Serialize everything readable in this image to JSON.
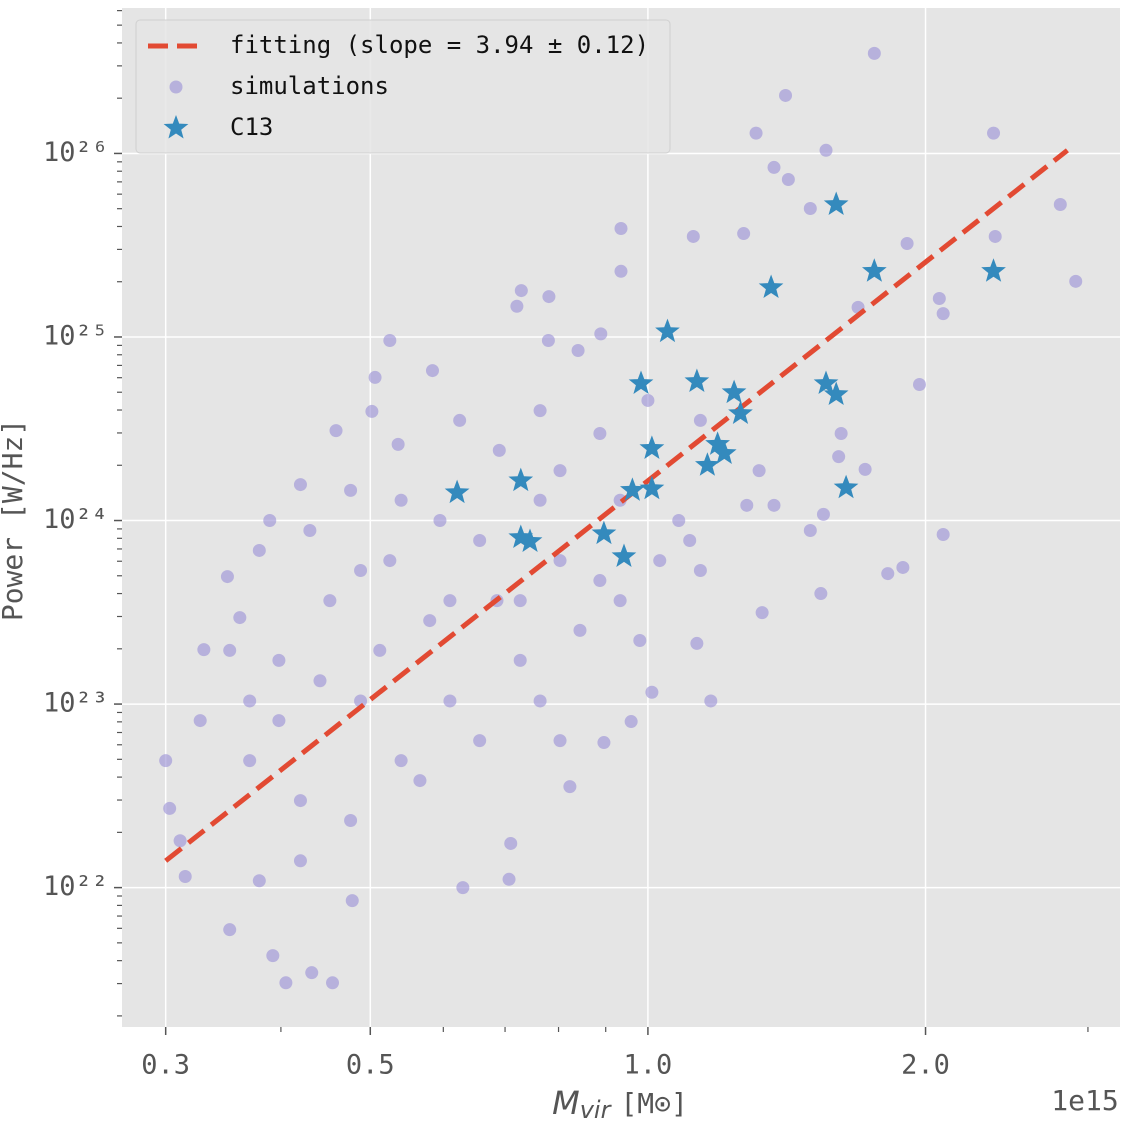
{
  "chart_data": {
    "type": "scatter",
    "xlabel": "M",
    "xlabel_sub": "vir",
    "xlabel_unit": "[M⊙]",
    "ylabel": "Power [W/Hz]",
    "x_offset_text": "1e15",
    "xscale": "log",
    "yscale": "log",
    "grid": true,
    "legend": "upper left",
    "xlim": [
      0.269,
      3.25
    ],
    "ylim": [
      1.74e+21,
      6.2e+26
    ],
    "xticks": [
      0.3,
      0.5,
      {
        "value": 1,
        "label": "1.0"
      },
      {
        "value": 2,
        "label": "2.0"
      }
    ],
    "xminorticks": [
      0.4,
      0.6,
      0.7,
      0.8,
      0.9,
      3
    ],
    "yticks": [
      {
        "value": 1e+22,
        "label": "10²²"
      },
      {
        "value": 1e+23,
        "label": "10²³"
      },
      {
        "value": 1e+24,
        "label": "10²⁴"
      },
      {
        "value": 1e+25,
        "label": "10²⁵"
      },
      {
        "value": 1e+26,
        "label": "10²⁶"
      }
    ],
    "yminorticks": [
      2e+21,
      3e+21,
      4e+21,
      5e+21,
      6e+21,
      7e+21,
      8e+21,
      9e+21,
      2e+22,
      3e+22,
      4e+22,
      5e+22,
      6e+22,
      7e+22,
      8e+22,
      9e+22,
      2e+23,
      3e+23,
      4e+23,
      5e+23,
      6e+23,
      7e+23,
      8e+23,
      9e+23,
      2e+24,
      3e+24,
      4e+24,
      5e+24,
      6e+24,
      7e+24,
      8e+24,
      9e+24,
      2e+25,
      3e+25,
      4e+25,
      5e+25,
      6e+25,
      7e+25,
      8e+25,
      9e+25,
      2e+26,
      3e+26,
      4e+26,
      5e+26,
      6e+26
    ],
    "series": [
      {
        "name": "fitting (slope = 3.94 ± 0.12)",
        "mark": "line",
        "color": "#E24A33",
        "x": [
          0.3,
          2.85
        ],
        "values": [
          1.4e+22,
          1.04e+26
        ]
      },
      {
        "name": "simulations",
        "mark": "circle",
        "color": "#988ED5",
        "x": [
          1.76,
          1.41,
          1.31,
          2.37,
          1.56,
          1.37,
          1.42,
          1.5,
          2.8,
          0.935,
          1.12,
          1.27,
          1.91,
          2.38,
          0.935,
          0.729,
          0.781,
          0.721,
          1.69,
          2.91,
          2.07,
          0.525,
          0.506,
          0.584,
          0.78,
          0.84,
          0.889,
          1.97,
          2.09,
          0.459,
          0.502,
          0.536,
          0.42,
          0.389,
          0.35,
          0.361,
          0.33,
          0.3,
          0.303,
          0.315,
          0.352,
          0.392,
          0.405,
          0.455,
          0.432,
          0.478,
          0.63,
          0.707,
          0.71,
          0.823,
          0.896,
          0.959,
          1.17,
          1.01,
          1.13,
          1.33,
          1.54,
          1.82,
          1.89,
          2.09,
          1.5,
          1.55,
          1.72,
          1.62,
          1.61,
          1.37,
          1.28,
          1.11,
          0.803,
          0.686,
          0.58,
          0.512,
          0.441,
          0.398,
          0.37,
          0.42,
          0.476,
          0.54,
          0.61,
          0.727,
          0.844,
          0.933,
          0.764,
          0.657,
          0.566,
          0.488,
          0.452,
          0.398,
          0.37,
          0.352,
          0.595,
          0.657,
          0.525,
          0.488,
          0.43,
          0.379,
          0.61,
          0.727,
          0.887,
          1.03,
          1.14,
          1.0,
          0.887,
          0.803,
          0.933,
          1.14,
          1.08,
          1.32,
          0.69,
          0.764,
          0.54,
          0.476,
          0.625,
          0.764,
          0.98,
          0.803,
          0.327,
          0.311,
          0.379,
          0.42
        ],
        "values": [
          3.51e+26,
          2.07e+26,
          1.29e+26,
          1.29e+26,
          1.04e+26,
          8.39e+25,
          7.21e+25,
          5.01e+25,
          5.27e+25,
          3.9e+25,
          3.53e+25,
          3.66e+25,
          3.23e+25,
          3.53e+25,
          2.28e+25,
          1.79e+25,
          1.66e+25,
          1.47e+25,
          1.45e+25,
          2.01e+25,
          1.62e+25,
          9.57e+24,
          6.02e+24,
          6.56e+24,
          9.57e+24,
          8.44e+24,
          1.04e+25,
          5.51e+24,
          1.34e+25,
          3.09e+24,
          3.93e+24,
          2.6e+24,
          1.57e+24,
          1e+24,
          4.95e+23,
          2.96e+23,
          1.98e+23,
          4.92e+22,
          2.7e+22,
          1.15e+22,
          5.9e+21,
          4.26e+21,
          3.03e+21,
          3.03e+21,
          3.44e+21,
          8.49e+21,
          1e+22,
          1.11e+22,
          1.74e+22,
          3.55e+22,
          6.17e+22,
          8.03e+22,
          1.04e+23,
          1.16e+23,
          2.14e+23,
          3.15e+23,
          4e+23,
          5.14e+23,
          5.55e+23,
          8.39e+23,
          8.82e+23,
          1.08e+24,
          1.9e+24,
          2.98e+24,
          2.23e+24,
          1.21e+24,
          1.21e+24,
          7.78e+23,
          6.05e+23,
          3.66e+23,
          2.85e+23,
          1.96e+23,
          1.34e+23,
          8.13e+22,
          4.92e+22,
          2.98e+22,
          2.32e+22,
          4.92e+22,
          1.04e+23,
          1.73e+23,
          2.52e+23,
          3.66e+23,
          1.04e+23,
          6.32e+22,
          3.83e+22,
          1.04e+23,
          3.66e+23,
          1.73e+23,
          1.04e+23,
          1.96e+23,
          1e+24,
          7.78e+23,
          6.05e+23,
          5.34e+23,
          8.82e+23,
          6.87e+23,
          3.66e+23,
          3.66e+23,
          4.71e+23,
          6.05e+23,
          5.34e+23,
          4.51e+24,
          2.98e+24,
          1.87e+24,
          1.29e+24,
          3.51e+24,
          1e+24,
          1.87e+24,
          2.41e+24,
          3.97e+24,
          1.29e+24,
          1.46e+24,
          3.51e+24,
          1.29e+24,
          2.22e+23,
          6.32e+22,
          8.13e+22,
          1.8e+22,
          1.09e+22,
          1.4e+22
        ]
      },
      {
        "name": "C13",
        "mark": "star",
        "color": "#348ABD",
        "x": [
          1.6,
          1.76,
          2.37,
          1.36,
          1.05,
          0.983,
          1.13,
          1.56,
          1.6,
          1.24,
          1.26,
          1.01,
          1.19,
          1.21,
          1.16,
          1.64,
          0.962,
          1.01,
          0.621,
          0.728,
          0.728,
          0.745,
          0.896,
          0.942
        ],
        "values": [
          5.27e+25,
          2.28e+25,
          2.28e+25,
          1.86e+25,
          1.07e+25,
          5.58e+24,
          5.72e+24,
          5.58e+24,
          4.86e+24,
          4.98e+24,
          3.83e+24,
          2.47e+24,
          2.6e+24,
          2.32e+24,
          2e+24,
          1.51e+24,
          1.46e+24,
          1.49e+24,
          1.42e+24,
          1.65e+24,
          8.08e+23,
          7.69e+23,
          8.49e+23,
          6.37e+23
        ]
      }
    ]
  }
}
